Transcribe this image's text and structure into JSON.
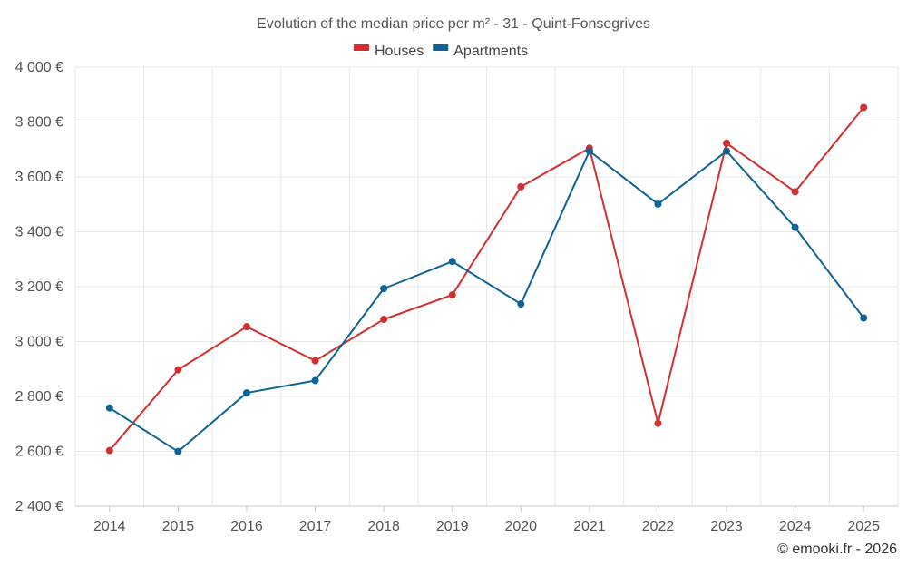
{
  "chart_data": {
    "type": "line",
    "title": "Evolution of the median price per m² - 31 - Quint-Fonsegrives",
    "categories": [
      "2014",
      "2015",
      "2016",
      "2017",
      "2018",
      "2019",
      "2020",
      "2021",
      "2022",
      "2023",
      "2024",
      "2025"
    ],
    "series": [
      {
        "name": "Houses",
        "color": "#d32f2f",
        "values": [
          2603,
          2897,
          3054,
          2930,
          3081,
          3170,
          3564,
          3705,
          2702,
          3723,
          3546,
          3853
        ]
      },
      {
        "name": "Apartments",
        "color": "#0d6494",
        "values": [
          2758,
          2599,
          2813,
          2858,
          3193,
          3292,
          3137,
          3694,
          3501,
          3694,
          3416,
          3086
        ]
      }
    ],
    "ylim": [
      2400,
      4000
    ],
    "yticks": [
      2400,
      2600,
      2800,
      3000,
      3200,
      3400,
      3600,
      3800,
      4000
    ],
    "ytick_labels": [
      "2 400 €",
      "2 600 €",
      "2 800 €",
      "3 000 €",
      "3 200 €",
      "3 400 €",
      "3 600 €",
      "3 800 €",
      "4 000 €"
    ],
    "xlabel": "",
    "ylabel": "",
    "grid": true,
    "legend_position": "top-center"
  },
  "credit": "© emooki.fr - 2026"
}
